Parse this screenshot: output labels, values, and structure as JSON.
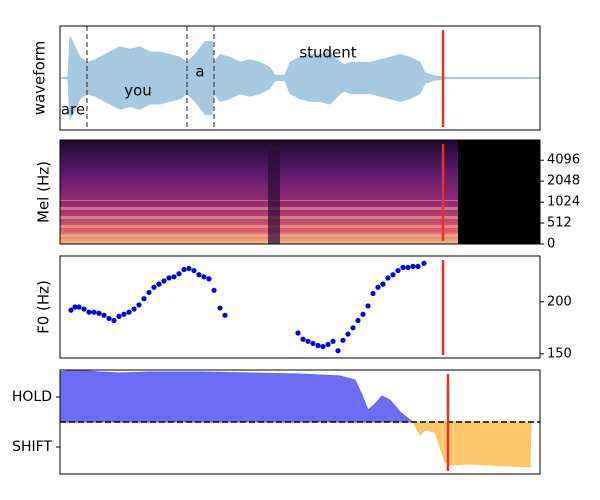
{
  "chart_data": [
    {
      "type": "waveform",
      "ylabel": "waveform",
      "xlim": [
        0,
        480
      ],
      "ylim": [
        -1,
        1
      ],
      "color": "#a6c8e0",
      "x": [
        0,
        8,
        10,
        15,
        20,
        27,
        35,
        40,
        50,
        60,
        70,
        80,
        90,
        100,
        110,
        120,
        127,
        135,
        145,
        152,
        154,
        160,
        170,
        180,
        190,
        200,
        210,
        215,
        225,
        230,
        240,
        250,
        260,
        270,
        280,
        285,
        290,
        300,
        310,
        320,
        330,
        340,
        350,
        360,
        365,
        375,
        385,
        390,
        480
      ],
      "values": [
        0,
        0.02,
        0.8,
        0.6,
        0.4,
        0.3,
        0.35,
        0.4,
        0.5,
        0.6,
        0.55,
        0.6,
        0.5,
        0.5,
        0.45,
        0.4,
        0.3,
        0.45,
        0.7,
        0.7,
        0.3,
        0.45,
        0.4,
        0.3,
        0.35,
        0.3,
        0.2,
        0.05,
        0.05,
        0.3,
        0.4,
        0.45,
        0.45,
        0.5,
        0.3,
        0.25,
        0.3,
        0.3,
        0.3,
        0.35,
        0.4,
        0.45,
        0.4,
        0.3,
        0.1,
        0.04,
        0.02,
        0.01,
        0.01
      ],
      "vlines": [
        27,
        127,
        154
      ],
      "annotations": [
        {
          "text": "are",
          "x": 13,
          "y": -0.62
        },
        {
          "text": "you",
          "x": 78,
          "y": -0.25
        },
        {
          "text": "a",
          "x": 140,
          "y": 0.12
        },
        {
          "text": "student",
          "x": 268,
          "y": 0.48
        }
      ],
      "marker_x": 383,
      "marker_color": "#e8302a"
    },
    {
      "type": "spectrogram",
      "ylabel": "Mel (Hz)",
      "xlim": [
        0,
        480
      ],
      "ylim": [
        0,
        8000
      ],
      "yscale": "symlog",
      "yticks": [
        0,
        512,
        1024,
        2048,
        4096
      ],
      "ytick_side": "right",
      "marker_x": 383,
      "marker_color": "#e8302a"
    },
    {
      "type": "scatter",
      "ylabel": "F0 (Hz)",
      "xlim": [
        0,
        480
      ],
      "ylim": [
        146,
        244
      ],
      "yticks": [
        150,
        200
      ],
      "ytick_side": "right",
      "color": "#0000ee",
      "x": [
        11,
        15,
        19,
        24,
        29,
        34,
        39,
        44,
        49,
        54,
        59,
        64,
        69,
        74,
        79,
        84,
        89,
        94,
        99,
        104,
        109,
        114,
        119,
        124,
        129,
        134,
        139,
        144,
        149,
        154,
        160,
        165,
        238,
        243,
        248,
        253,
        258,
        263,
        268,
        273,
        278,
        283,
        288,
        293,
        298,
        303,
        308,
        313,
        318,
        323,
        328,
        333,
        338,
        343,
        348,
        353,
        358,
        364
      ],
      "values": [
        192,
        195,
        195,
        193,
        190,
        190,
        189,
        187,
        184,
        182,
        186,
        188,
        190,
        193,
        197,
        203,
        209,
        214,
        217,
        220,
        223,
        224,
        227,
        231,
        232,
        230,
        226,
        224,
        222,
        211,
        194,
        187,
        170,
        164,
        162,
        160,
        158,
        157,
        159,
        162,
        153,
        163,
        169,
        175,
        182,
        188,
        196,
        208,
        214,
        217,
        223,
        226,
        230,
        233,
        233,
        234,
        234,
        237
      ],
      "marker_x": 383,
      "marker_color": "#e8302a"
    },
    {
      "type": "area",
      "xlim": [
        0,
        480
      ],
      "ylim": [
        -1.04,
        1.04
      ],
      "yticks": [
        {
          "value": 0.5,
          "label": "HOLD"
        },
        {
          "value": -0.5,
          "label": "SHIFT"
        }
      ],
      "ytick_side": "left",
      "hlines": [
        0
      ],
      "series": [
        {
          "color": "#6464f4",
          "x": [
            0,
            15,
            40,
            60,
            90,
            140,
            190,
            240,
            280,
            295,
            302,
            308,
            315,
            322,
            330,
            340,
            350,
            353
          ],
          "values": [
            1.0,
            1.04,
            1.0,
            0.98,
            1.0,
            1.0,
            0.98,
            0.96,
            0.92,
            0.84,
            0.54,
            0.24,
            0.36,
            0.52,
            0.44,
            0.2,
            0.04,
            0
          ]
        },
        {
          "color": "#ffc462",
          "x": [
            353,
            360,
            365,
            375,
            385,
            390,
            410,
            430,
            450,
            470,
            471
          ],
          "values": [
            0,
            -0.26,
            -0.16,
            -0.2,
            -0.8,
            -0.86,
            -0.84,
            -0.86,
            -0.88,
            -0.9,
            0
          ]
        }
      ],
      "marker_x": 388,
      "marker_color": "#e8302a"
    }
  ]
}
